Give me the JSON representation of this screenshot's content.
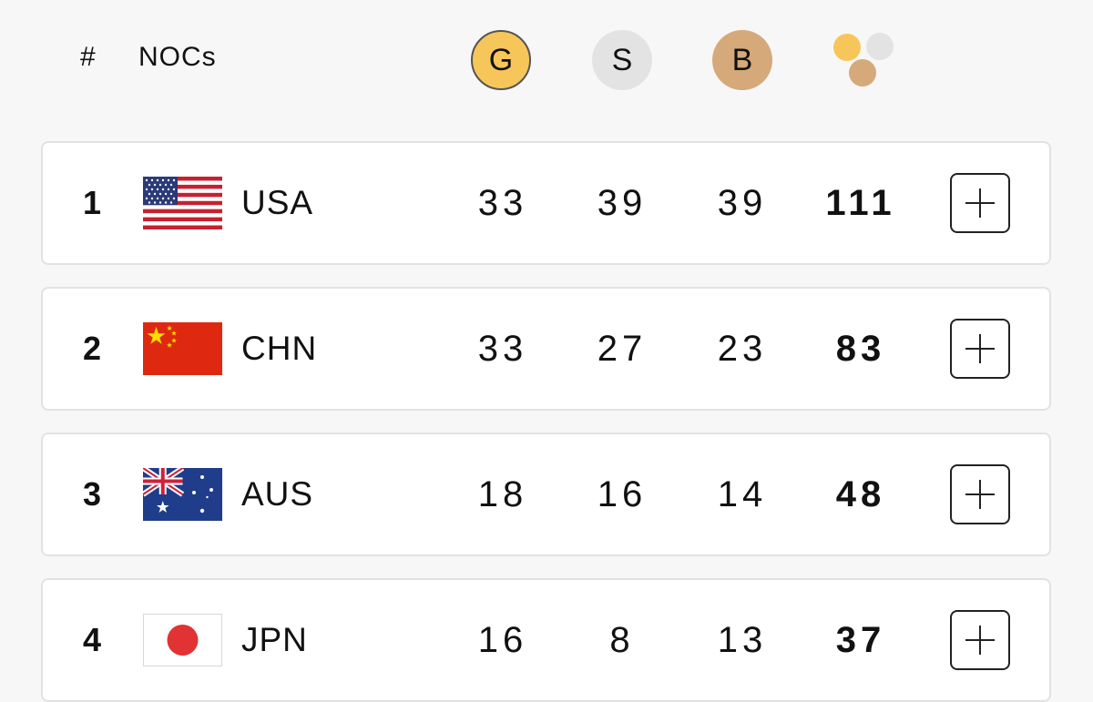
{
  "header": {
    "rank_label": "#",
    "noc_label": "NOCs",
    "gold_label": "G",
    "silver_label": "S",
    "bronze_label": "B",
    "total_icon": "medals-total-icon"
  },
  "colors": {
    "gold": "#f7c65a",
    "silver": "#e3e3e3",
    "bronze": "#d6a97a"
  },
  "rows": [
    {
      "rank": "1",
      "noc": "USA",
      "flag_icon": "usa-flag-icon",
      "gold": "33",
      "silver": "39",
      "bronze": "39",
      "total": "111"
    },
    {
      "rank": "2",
      "noc": "CHN",
      "flag_icon": "china-flag-icon",
      "gold": "33",
      "silver": "27",
      "bronze": "23",
      "total": "83"
    },
    {
      "rank": "3",
      "noc": "AUS",
      "flag_icon": "australia-flag-icon",
      "gold": "18",
      "silver": "16",
      "bronze": "14",
      "total": "48"
    },
    {
      "rank": "4",
      "noc": "JPN",
      "flag_icon": "japan-flag-icon",
      "gold": "16",
      "silver": "8",
      "bronze": "13",
      "total": "37"
    }
  ]
}
